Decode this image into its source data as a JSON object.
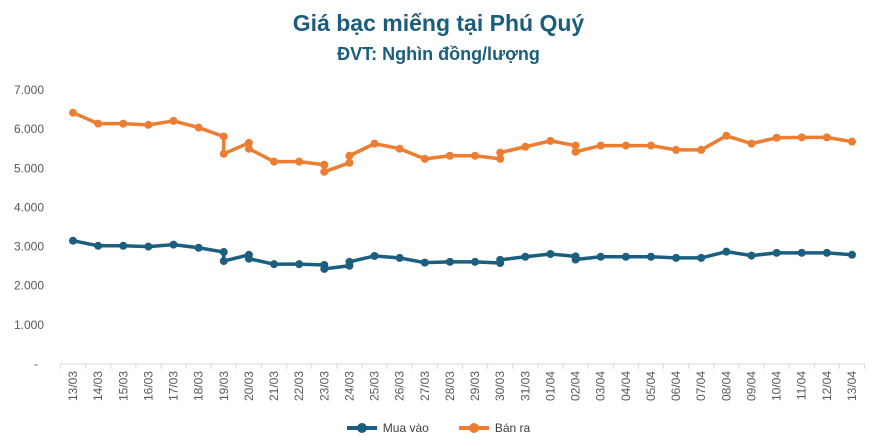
{
  "chart_data": {
    "type": "line",
    "title": "Giá bạc miếng tại Phú Quý",
    "subtitle": "ĐVT: Nghìn đồng/lượng",
    "xlabel": "",
    "ylabel": "",
    "ylim": [
      0,
      7000
    ],
    "yticks": [
      "-",
      "1.000",
      "2.000",
      "3.000",
      "4.000",
      "5.000",
      "6.000",
      "7.000"
    ],
    "grid": false,
    "legend": "bottom",
    "categories": [
      "13/03",
      "14/03",
      "15/03",
      "16/03",
      "17/03",
      "18/03",
      "19/03",
      "20/03",
      "21/03",
      "22/03",
      "23/03",
      "24/03",
      "25/03",
      "26/03",
      "27/03",
      "28/03",
      "29/03",
      "30/03",
      "31/03",
      "01/04",
      "02/04",
      "03/04",
      "04/04",
      "05/04",
      "06/04",
      "07/04",
      "08/04",
      "09/04",
      "10/04",
      "11/04",
      "12/04",
      "13/04"
    ],
    "series": [
      {
        "name": "Mua vào",
        "color": "#1a5f80",
        "points": [
          [
            "13/03",
            3150
          ],
          [
            "14/03",
            3020
          ],
          [
            "15/03",
            3020
          ],
          [
            "16/03",
            3000
          ],
          [
            "17/03",
            3050
          ],
          [
            "18/03",
            2970
          ],
          [
            "19/03",
            2860
          ],
          [
            "19/03",
            2630
          ],
          [
            "20/03",
            2790
          ],
          [
            "20/03",
            2690
          ],
          [
            "21/03",
            2550
          ],
          [
            "22/03",
            2550
          ],
          [
            "23/03",
            2530
          ],
          [
            "23/03",
            2430
          ],
          [
            "24/03",
            2510
          ],
          [
            "24/03",
            2610
          ],
          [
            "25/03",
            2760
          ],
          [
            "26/03",
            2710
          ],
          [
            "27/03",
            2590
          ],
          [
            "28/03",
            2610
          ],
          [
            "29/03",
            2610
          ],
          [
            "30/03",
            2580
          ],
          [
            "30/03",
            2660
          ],
          [
            "31/03",
            2740
          ],
          [
            "01/04",
            2810
          ],
          [
            "02/04",
            2750
          ],
          [
            "02/04",
            2670
          ],
          [
            "03/04",
            2740
          ],
          [
            "04/04",
            2740
          ],
          [
            "05/04",
            2740
          ],
          [
            "06/04",
            2710
          ],
          [
            "07/04",
            2710
          ],
          [
            "08/04",
            2870
          ],
          [
            "09/04",
            2770
          ],
          [
            "10/04",
            2840
          ],
          [
            "11/04",
            2840
          ],
          [
            "12/04",
            2840
          ],
          [
            "13/04",
            2790
          ]
        ]
      },
      {
        "name": "Bán ra",
        "color": "#ed7d31",
        "points": [
          [
            "13/03",
            6420
          ],
          [
            "14/03",
            6140
          ],
          [
            "15/03",
            6140
          ],
          [
            "16/03",
            6110
          ],
          [
            "17/03",
            6210
          ],
          [
            "18/03",
            6040
          ],
          [
            "19/03",
            5810
          ],
          [
            "19/03",
            5370
          ],
          [
            "20/03",
            5650
          ],
          [
            "20/03",
            5500
          ],
          [
            "21/03",
            5170
          ],
          [
            "22/03",
            5170
          ],
          [
            "23/03",
            5090
          ],
          [
            "23/03",
            4910
          ],
          [
            "24/03",
            5140
          ],
          [
            "24/03",
            5320
          ],
          [
            "25/03",
            5630
          ],
          [
            "26/03",
            5500
          ],
          [
            "27/03",
            5240
          ],
          [
            "28/03",
            5320
          ],
          [
            "29/03",
            5320
          ],
          [
            "30/03",
            5240
          ],
          [
            "30/03",
            5400
          ],
          [
            "31/03",
            5550
          ],
          [
            "01/04",
            5700
          ],
          [
            "02/04",
            5580
          ],
          [
            "02/04",
            5420
          ],
          [
            "03/04",
            5580
          ],
          [
            "04/04",
            5580
          ],
          [
            "05/04",
            5580
          ],
          [
            "06/04",
            5470
          ],
          [
            "07/04",
            5470
          ],
          [
            "08/04",
            5830
          ],
          [
            "09/04",
            5630
          ],
          [
            "10/04",
            5780
          ],
          [
            "11/04",
            5790
          ],
          [
            "12/04",
            5790
          ],
          [
            "13/04",
            5680
          ]
        ]
      }
    ]
  }
}
